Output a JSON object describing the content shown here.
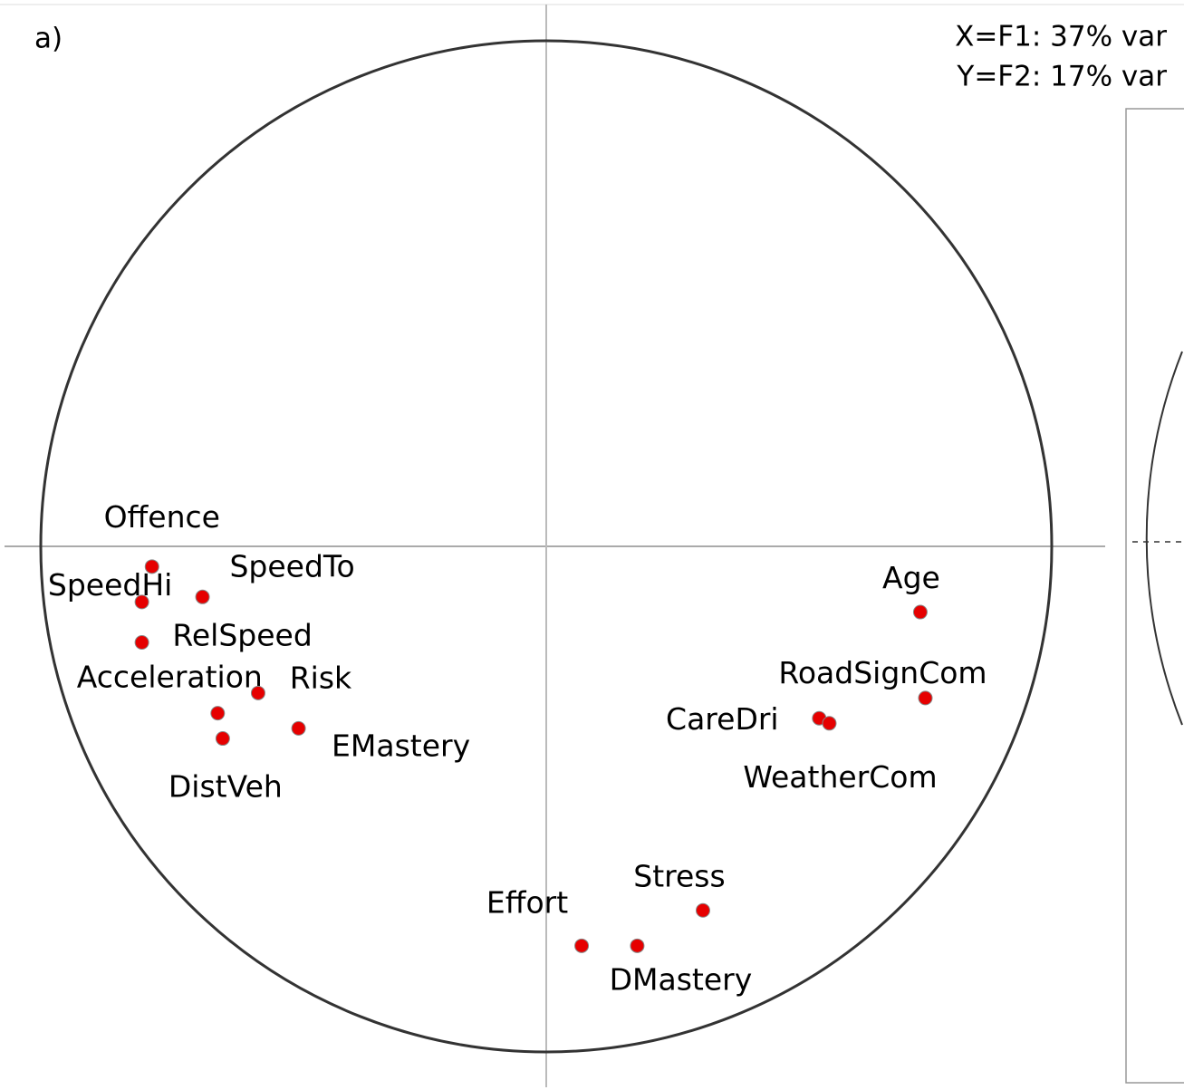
{
  "chart_data": {
    "type": "scatter",
    "title": "a)",
    "annotations": [
      "X=F1: 37% var",
      "Y=F2: 17% var"
    ],
    "labels": [
      "Offence",
      "SpeedHi",
      "SpeedTo",
      "RelSpeed",
      "Acceleration",
      "Risk",
      "DistVeh",
      "EMastery",
      "Age",
      "RoadSignCom",
      "CareDri",
      "WeatherCom",
      "Stress",
      "Effort",
      "DMastery"
    ],
    "x": [
      -0.78,
      -0.8,
      -0.68,
      -0.8,
      -0.65,
      -0.57,
      -0.64,
      -0.49,
      0.74,
      0.75,
      0.54,
      0.56,
      0.31,
      0.07,
      0.18
    ],
    "values": [
      -0.04,
      -0.11,
      -0.1,
      -0.19,
      -0.33,
      -0.29,
      -0.38,
      -0.36,
      -0.13,
      -0.3,
      -0.34,
      -0.35,
      -0.72,
      -0.79,
      -0.79
    ],
    "color": "#e60000",
    "xlim": [
      -1,
      1
    ],
    "ylim": [
      -1,
      1
    ]
  }
}
